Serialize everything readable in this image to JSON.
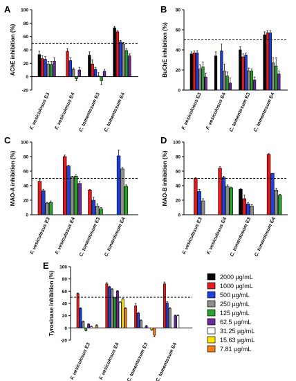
{
  "colors": {
    "2000 µg/mL": "#000000",
    "1000 µg/mL": "#e41a1c",
    "500 µg/mL": "#1f3fd9",
    "250 µg/mL": "#8c8c8c",
    "125 µg/mL": "#2ca02c",
    "62.5 µg/mL": "#6a2a9a",
    "31.25 µg/mL": "#ffffff",
    "15.63 µg/mL": "#ffe600",
    "7.81 µg/mL": "#f07f1a"
  },
  "legend": {
    "entries": [
      "2000 µg/mL",
      "1000 µg/mL",
      "500 µg/mL",
      "250 µg/mL",
      "125 µg/mL",
      "62.5 µg/mL",
      "31.25 µg/mL",
      "15.63 µg/mL",
      "7.81 µg/mL"
    ]
  },
  "chart_data": [
    {
      "panel": "A",
      "type": "bar",
      "ylabel": "AChE inhibition (%)",
      "ylim": [
        -20,
        100
      ],
      "yticks": [
        -20,
        0,
        20,
        40,
        60,
        80,
        100
      ],
      "reference_line": 50,
      "categories": [
        "F. vesiculosus E3",
        "F. vesiculosus E4",
        "C. tomentosum E3",
        "C. tomentosum E4"
      ],
      "series": [
        {
          "name": "2000 µg/mL",
          "values": [
            33,
            0,
            32,
            73
          ],
          "errors": [
            5,
            0,
            5,
            2
          ]
        },
        {
          "name": "1000 µg/mL",
          "values": [
            27,
            38,
            19,
            67
          ],
          "errors": [
            4,
            4,
            6,
            2
          ]
        },
        {
          "name": "500 µg/mL",
          "values": [
            26,
            24,
            11,
            52
          ],
          "errors": [
            4,
            4,
            3,
            2
          ]
        },
        {
          "name": "250 µg/mL",
          "values": [
            19,
            11,
            1,
            49
          ],
          "errors": [
            4,
            2,
            5,
            2
          ]
        },
        {
          "name": "125 µg/mL",
          "values": [
            18,
            -3,
            -6,
            39
          ],
          "errors": [
            5,
            3,
            6,
            3
          ]
        },
        {
          "name": "62.5 µg/mL",
          "values": [
            23,
            10,
            8,
            31
          ],
          "errors": [
            5,
            4,
            3,
            3
          ]
        }
      ]
    },
    {
      "panel": "B",
      "type": "bar",
      "ylabel": "BuChE inhibition (%)",
      "ylim": [
        0,
        80
      ],
      "yticks": [
        0,
        20,
        40,
        60,
        80
      ],
      "reference_line": 50,
      "categories": [
        "F. vesiculosus E3",
        "F. vesiculosus E4",
        "C. tomentosum E3",
        "C. tomentosum E4"
      ],
      "series": [
        {
          "name": "2000 µg/mL",
          "values": [
            36,
            34,
            40,
            55
          ],
          "errors": [
            2,
            4,
            3,
            3
          ]
        },
        {
          "name": "1000 µg/mL",
          "values": [
            37,
            0,
            33,
            57
          ],
          "errors": [
            2,
            0,
            3,
            2
          ]
        },
        {
          "name": "500 µg/mL",
          "values": [
            37,
            39,
            35,
            57
          ],
          "errors": [
            2,
            7,
            2,
            2
          ]
        },
        {
          "name": "250 µg/mL",
          "values": [
            21,
            19,
            19,
            27
          ],
          "errors": [
            4,
            7,
            3,
            5
          ]
        },
        {
          "name": "125 µg/mL",
          "values": [
            23,
            14,
            19,
            24
          ],
          "errors": [
            5,
            4,
            2,
            8
          ]
        },
        {
          "name": "62.5 µg/mL",
          "values": [
            13,
            7,
            10,
            16
          ],
          "errors": [
            4,
            5,
            3,
            3
          ]
        }
      ]
    },
    {
      "panel": "C",
      "type": "bar",
      "ylabel": "MAO-A inhibition (%)",
      "ylim": [
        0,
        100
      ],
      "yticks": [
        0,
        20,
        40,
        60,
        80,
        100
      ],
      "reference_line": 50,
      "categories": [
        "F. vesiculosus E3",
        "F. vesiculosus E4",
        "C. tomentosum E3",
        "C. tomentosum E4"
      ],
      "series": [
        {
          "name": "1000 µg/mL",
          "values": [
            46,
            80,
            34,
            0
          ],
          "errors": [
            2,
            2,
            1,
            0
          ]
        },
        {
          "name": "500 µg/mL",
          "values": [
            33,
            67,
            20,
            81
          ],
          "errors": [
            2,
            1,
            4,
            8
          ]
        },
        {
          "name": "250 µg/mL",
          "values": [
            16,
            52,
            12,
            63
          ],
          "errors": [
            1,
            1,
            3,
            2
          ]
        },
        {
          "name": "125 µg/mL",
          "values": [
            17,
            53,
            8,
            39
          ],
          "errors": [
            2,
            2,
            2,
            2
          ]
        },
        {
          "name": "62.5 µg/mL",
          "values": [
            0,
            43,
            0,
            0
          ],
          "errors": [
            0,
            3,
            0,
            0
          ]
        }
      ]
    },
    {
      "panel": "D",
      "type": "bar",
      "ylabel": "MAO-B inhibition (%)",
      "ylim": [
        0,
        100
      ],
      "yticks": [
        0,
        20,
        40,
        60,
        80,
        100
      ],
      "reference_line": 50,
      "categories": [
        "F. vesiculosus E3",
        "F. vesiculosus E4",
        "C. tomentosum E3",
        "C. tomentosum E4"
      ],
      "series": [
        {
          "name": "2000 µg/mL",
          "values": [
            0,
            0,
            35,
            0
          ],
          "errors": [
            0,
            0,
            1,
            0
          ]
        },
        {
          "name": "1000 µg/mL",
          "values": [
            50,
            64,
            22,
            83
          ],
          "errors": [
            1,
            2,
            5,
            1
          ]
        },
        {
          "name": "500 µg/mL",
          "values": [
            32,
            51,
            15,
            57
          ],
          "errors": [
            3,
            2,
            2,
            0
          ]
        },
        {
          "name": "250 µg/mL",
          "values": [
            19,
            39,
            12,
            34
          ],
          "errors": [
            3,
            2,
            2,
            2
          ]
        },
        {
          "name": "125 µg/mL",
          "values": [
            0,
            37,
            0,
            27
          ],
          "errors": [
            0,
            1,
            0,
            1
          ]
        }
      ]
    },
    {
      "panel": "E",
      "type": "bar",
      "ylabel": "Tyrosinase inhibition (%)",
      "ylim": [
        -20,
        100
      ],
      "yticks": [
        -20,
        0,
        20,
        40,
        60,
        80,
        100
      ],
      "reference_line": 50,
      "categories": [
        "F. vesiculosus E3",
        "F. vesiculosus E4",
        "C. tomentosum E3",
        "C. tomentosum E4"
      ],
      "series": [
        {
          "name": "1000 µg/mL",
          "values": [
            56,
            72,
            36,
            72
          ],
          "errors": [
            1,
            2,
            4,
            3
          ]
        },
        {
          "name": "500 µg/mL",
          "values": [
            32,
            67,
            24,
            41
          ],
          "errors": [
            1,
            1,
            2,
            2
          ]
        },
        {
          "name": "250 µg/mL",
          "values": [
            10,
            63,
            12,
            32
          ],
          "errors": [
            1,
            1,
            1,
            1
          ]
        },
        {
          "name": "125 µg/mL",
          "values": [
            -4,
            49,
            0,
            0
          ],
          "errors": [
            1,
            1,
            0,
            0
          ]
        },
        {
          "name": "62.5 µg/mL",
          "values": [
            6,
            60,
            3,
            20
          ],
          "errors": [
            1,
            1,
            1,
            1
          ]
        },
        {
          "name": "31.25 µg/mL",
          "values": [
            2,
            42,
            0,
            20
          ],
          "errors": [
            1,
            1,
            0,
            1
          ]
        },
        {
          "name": "15.63 µg/mL",
          "values": [
            0,
            47,
            -3,
            0
          ],
          "errors": [
            0,
            1,
            1,
            0
          ]
        },
        {
          "name": "7.81 µg/mL",
          "values": [
            4,
            32,
            -12,
            0
          ],
          "errors": [
            1,
            1,
            2,
            0
          ]
        }
      ]
    }
  ]
}
